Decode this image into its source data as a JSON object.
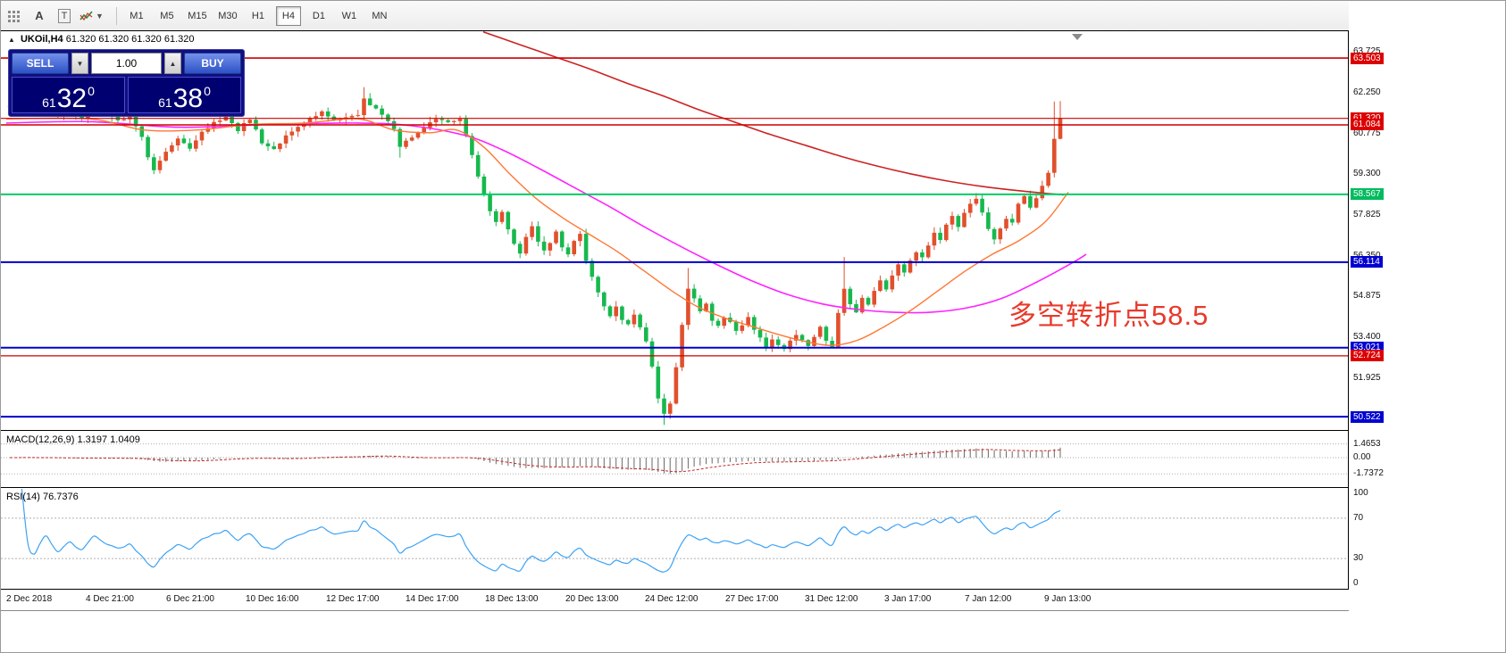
{
  "toolbar": {
    "icon_a": "A",
    "icon_t": "T",
    "timeframes": [
      "M1",
      "M5",
      "M15",
      "M30",
      "H1",
      "H4",
      "D1",
      "W1",
      "MN"
    ],
    "active_timeframe": "H4"
  },
  "chart": {
    "title_symbol": "UKOil,H4",
    "title_ohlc": "61.320 61.320 61.320 61.320",
    "annotation": "多空转折点58.5",
    "trade_panel": {
      "sell_label": "SELL",
      "buy_label": "BUY",
      "volume": "1.00",
      "sell_price_small": "61",
      "sell_price_big": "32",
      "sell_price_sup": "0",
      "buy_price_small": "61",
      "buy_price_big": "38",
      "buy_price_sup": "0"
    },
    "price_axis": {
      "plain_labels": [
        "63.725",
        "62.250",
        "60.775",
        "59.300",
        "57.825",
        "56.350",
        "54.875",
        "53.400",
        "51.925"
      ],
      "badges": [
        {
          "value": "63.503",
          "price": 63.503,
          "color": "red"
        },
        {
          "value": "61.320",
          "price": 61.32,
          "color": "red"
        },
        {
          "value": "61.084",
          "price": 61.084,
          "color": "red"
        },
        {
          "value": "58.567",
          "price": 58.567,
          "color": "green"
        },
        {
          "value": "56.114",
          "price": 56.114,
          "color": "blue"
        },
        {
          "value": "53.021",
          "price": 53.021,
          "color": "blue"
        },
        {
          "value": "52.724",
          "price": 52.724,
          "color": "red"
        },
        {
          "value": "50.522",
          "price": 50.522,
          "color": "blue"
        }
      ]
    },
    "levels": [
      {
        "price": 63.503,
        "color": "#cc0000",
        "width": 1.6
      },
      {
        "price": 61.32,
        "color": "#cc0000",
        "width": 1.2
      },
      {
        "price": 61.084,
        "color": "#cc0000",
        "width": 1.6
      },
      {
        "price": 58.567,
        "color": "#00cc66",
        "width": 2
      },
      {
        "price": 56.114,
        "color": "#0000cc",
        "width": 2
      },
      {
        "price": 53.021,
        "color": "#0000cc",
        "width": 2
      },
      {
        "price": 52.724,
        "color": "#cc0000",
        "width": 1.2
      },
      {
        "price": 50.522,
        "color": "#0000cc",
        "width": 2
      }
    ]
  },
  "macd": {
    "label": "MACD(12,26,9) 1.3197 1.0409",
    "axis": [
      "1.4653",
      "0.00",
      "-1.7372"
    ]
  },
  "rsi": {
    "label": "RSI(14) 76.7376",
    "axis": [
      "100",
      "70",
      "30",
      "0"
    ]
  },
  "colors": {
    "bull": "#e0502d",
    "bear": "#17b84e",
    "badge_red": "#dd0000",
    "badge_blue": "#0000d0",
    "badge_green": "#00bb5e",
    "annotation": "#e8392b",
    "rsi_line": "#3da2f5",
    "macd_signal": "#c22a2a",
    "macd_hist": "#6a6a6a"
  },
  "chart_data": {
    "type": "candlestick",
    "symbol": "UKOil",
    "timeframe": "H4",
    "ohlc_current": {
      "open": "61.320",
      "high": "61.320",
      "low": "61.320",
      "close": "61.320"
    },
    "ylim": [
      50.04,
      64.474
    ],
    "x_start": 10,
    "x_step": 6.72,
    "candle_count": 176,
    "last_close": 61.32,
    "price_anchors": [
      [
        0,
        61.75
      ],
      [
        2,
        62.0
      ],
      [
        4,
        61.5
      ],
      [
        6,
        61.8
      ],
      [
        8,
        61.35
      ],
      [
        10,
        61.6
      ],
      [
        12,
        61.3
      ],
      [
        14,
        61.85
      ],
      [
        16,
        61.5
      ],
      [
        18,
        61.2
      ],
      [
        20,
        61.45
      ],
      [
        22,
        60.6
      ],
      [
        23,
        59.9
      ],
      [
        24,
        59.45
      ],
      [
        26,
        60.15
      ],
      [
        28,
        60.6
      ],
      [
        30,
        60.2
      ],
      [
        32,
        60.85
      ],
      [
        34,
        61.15
      ],
      [
        36,
        61.4
      ],
      [
        38,
        60.9
      ],
      [
        40,
        61.3
      ],
      [
        42,
        60.45
      ],
      [
        44,
        60.2
      ],
      [
        46,
        60.7
      ],
      [
        48,
        61.05
      ],
      [
        50,
        61.3
      ],
      [
        52,
        61.55
      ],
      [
        54,
        61.2
      ],
      [
        56,
        61.4
      ],
      [
        58,
        61.45
      ],
      [
        59,
        62.05
      ],
      [
        60,
        61.8
      ],
      [
        62,
        61.5
      ],
      [
        64,
        60.9
      ],
      [
        65,
        60.3
      ],
      [
        67,
        60.65
      ],
      [
        69,
        61.0
      ],
      [
        71,
        61.35
      ],
      [
        73,
        61.2
      ],
      [
        75,
        61.3
      ],
      [
        76,
        60.7
      ],
      [
        77,
        59.95
      ],
      [
        78,
        59.25
      ],
      [
        79,
        58.6
      ],
      [
        80,
        58.0
      ],
      [
        81,
        57.6
      ],
      [
        82,
        57.95
      ],
      [
        83,
        57.3
      ],
      [
        84,
        56.8
      ],
      [
        85,
        56.45
      ],
      [
        86,
        57.0
      ],
      [
        87,
        57.45
      ],
      [
        88,
        56.9
      ],
      [
        89,
        56.55
      ],
      [
        90,
        56.8
      ],
      [
        91,
        57.2
      ],
      [
        92,
        56.65
      ],
      [
        93,
        56.35
      ],
      [
        94,
        56.9
      ],
      [
        95,
        57.1
      ],
      [
        96,
        56.2
      ],
      [
        97,
        55.6
      ],
      [
        98,
        55.0
      ],
      [
        99,
        54.55
      ],
      [
        100,
        54.2
      ],
      [
        101,
        54.5
      ],
      [
        102,
        54.0
      ],
      [
        103,
        53.9
      ],
      [
        104,
        54.25
      ],
      [
        105,
        53.8
      ],
      [
        106,
        53.2
      ],
      [
        107,
        52.3
      ],
      [
        108,
        51.2
      ],
      [
        109,
        50.65
      ],
      [
        110,
        51.0
      ],
      [
        111,
        52.3
      ],
      [
        112,
        53.8
      ],
      [
        113,
        55.2
      ],
      [
        114,
        54.8
      ],
      [
        115,
        54.3
      ],
      [
        116,
        54.6
      ],
      [
        117,
        54.0
      ],
      [
        118,
        53.85
      ],
      [
        119,
        54.15
      ],
      [
        120,
        53.9
      ],
      [
        121,
        53.6
      ],
      [
        122,
        53.85
      ],
      [
        123,
        54.1
      ],
      [
        124,
        53.7
      ],
      [
        125,
        53.4
      ],
      [
        126,
        53.05
      ],
      [
        127,
        53.35
      ],
      [
        128,
        53.15
      ],
      [
        129,
        52.95
      ],
      [
        130,
        53.25
      ],
      [
        131,
        53.5
      ],
      [
        132,
        53.3
      ],
      [
        133,
        53.05
      ],
      [
        134,
        53.4
      ],
      [
        135,
        53.8
      ],
      [
        136,
        53.25
      ],
      [
        137,
        53.0
      ],
      [
        138,
        54.3
      ],
      [
        139,
        55.2
      ],
      [
        140,
        54.6
      ],
      [
        141,
        54.25
      ],
      [
        142,
        54.8
      ],
      [
        143,
        54.55
      ],
      [
        144,
        55.05
      ],
      [
        145,
        55.45
      ],
      [
        146,
        55.15
      ],
      [
        147,
        55.6
      ],
      [
        148,
        56.0
      ],
      [
        149,
        55.7
      ],
      [
        150,
        56.15
      ],
      [
        151,
        56.5
      ],
      [
        152,
        56.3
      ],
      [
        153,
        56.75
      ],
      [
        154,
        57.15
      ],
      [
        155,
        56.95
      ],
      [
        156,
        57.45
      ],
      [
        157,
        57.75
      ],
      [
        158,
        57.4
      ],
      [
        159,
        57.9
      ],
      [
        160,
        58.2
      ],
      [
        161,
        58.45
      ],
      [
        162,
        57.95
      ],
      [
        163,
        57.3
      ],
      [
        164,
        56.9
      ],
      [
        165,
        57.35
      ],
      [
        166,
        57.7
      ],
      [
        167,
        57.5
      ],
      [
        168,
        58.25
      ],
      [
        169,
        58.5
      ],
      [
        170,
        58.1
      ],
      [
        171,
        58.4
      ],
      [
        172,
        58.9
      ],
      [
        173,
        59.35
      ],
      [
        174,
        60.6
      ],
      [
        175,
        61.32
      ]
    ],
    "wick_overrides": {
      "24": {
        "low": 59.3
      },
      "59": {
        "high": 62.45
      },
      "65": {
        "low": 59.9
      },
      "109": {
        "low": 50.22
      },
      "113": {
        "high": 55.9
      },
      "139": {
        "high": 56.3
      },
      "161": {
        "high": 58.62
      },
      "174": {
        "high": 61.93
      },
      "175": {
        "high": 61.95
      }
    },
    "moving_averages": [
      {
        "name": "slow-ma",
        "color": "#cc2222",
        "width": 1.6,
        "points": [
          [
            540,
            64.45
          ],
          [
            580,
            64.0
          ],
          [
            620,
            63.55
          ],
          [
            660,
            63.1
          ],
          [
            700,
            62.6
          ],
          [
            740,
            62.15
          ],
          [
            780,
            61.65
          ],
          [
            820,
            61.2
          ],
          [
            860,
            60.75
          ],
          [
            900,
            60.35
          ],
          [
            940,
            59.95
          ],
          [
            980,
            59.6
          ],
          [
            1020,
            59.3
          ],
          [
            1060,
            59.05
          ],
          [
            1100,
            58.85
          ],
          [
            1140,
            58.7
          ],
          [
            1190,
            58.55
          ]
        ]
      },
      {
        "name": "mid-ma",
        "color": "#ff22ff",
        "width": 1.6,
        "points": [
          [
            6,
            61.15
          ],
          [
            100,
            61.2
          ],
          [
            200,
            61.0
          ],
          [
            300,
            61.1
          ],
          [
            400,
            61.15
          ],
          [
            460,
            61.05
          ],
          [
            520,
            60.7
          ],
          [
            560,
            60.2
          ],
          [
            600,
            59.55
          ],
          [
            640,
            58.85
          ],
          [
            680,
            58.15
          ],
          [
            720,
            57.4
          ],
          [
            760,
            56.7
          ],
          [
            800,
            56.05
          ],
          [
            840,
            55.45
          ],
          [
            880,
            54.95
          ],
          [
            920,
            54.6
          ],
          [
            960,
            54.4
          ],
          [
            1000,
            54.3
          ],
          [
            1040,
            54.3
          ],
          [
            1080,
            54.45
          ],
          [
            1120,
            54.8
          ],
          [
            1160,
            55.4
          ],
          [
            1200,
            56.1
          ],
          [
            1215,
            56.4
          ]
        ]
      },
      {
        "name": "fast-ma",
        "color": "#ff7733",
        "width": 1.4,
        "points": [
          [
            6,
            61.3
          ],
          [
            100,
            61.3
          ],
          [
            160,
            60.9
          ],
          [
            220,
            60.9
          ],
          [
            280,
            61.1
          ],
          [
            340,
            61.15
          ],
          [
            400,
            61.3
          ],
          [
            440,
            60.9
          ],
          [
            480,
            60.8
          ],
          [
            510,
            60.9
          ],
          [
            540,
            60.3
          ],
          [
            570,
            59.3
          ],
          [
            600,
            58.4
          ],
          [
            630,
            57.7
          ],
          [
            660,
            57.1
          ],
          [
            690,
            56.5
          ],
          [
            720,
            55.8
          ],
          [
            750,
            55.1
          ],
          [
            780,
            54.5
          ],
          [
            810,
            54.1
          ],
          [
            840,
            53.8
          ],
          [
            870,
            53.5
          ],
          [
            900,
            53.25
          ],
          [
            930,
            53.1
          ],
          [
            960,
            53.3
          ],
          [
            990,
            53.8
          ],
          [
            1020,
            54.4
          ],
          [
            1050,
            55.1
          ],
          [
            1080,
            55.8
          ],
          [
            1110,
            56.4
          ],
          [
            1140,
            56.9
          ],
          [
            1170,
            57.6
          ],
          [
            1195,
            58.65
          ]
        ]
      }
    ],
    "indicators": {
      "macd": {
        "fast": 12,
        "slow": 26,
        "signal": 9,
        "current": [
          1.3197,
          1.0409
        ]
      },
      "rsi": {
        "period": 14,
        "current": 76.7376,
        "levels": [
          70,
          30
        ]
      }
    },
    "time_labels": [
      "2 Dec 2018",
      "4 Dec 21:00",
      "6 Dec 21:00",
      "10 Dec 16:00",
      "12 Dec 17:00",
      "14 Dec 17:00",
      "18 Dec 13:00",
      "20 Dec 13:00",
      "24 Dec 12:00",
      "27 Dec 17:00",
      "31 Dec 12:00",
      "3 Jan 17:00",
      "7 Jan 12:00",
      "9 Jan 13:00"
    ]
  }
}
